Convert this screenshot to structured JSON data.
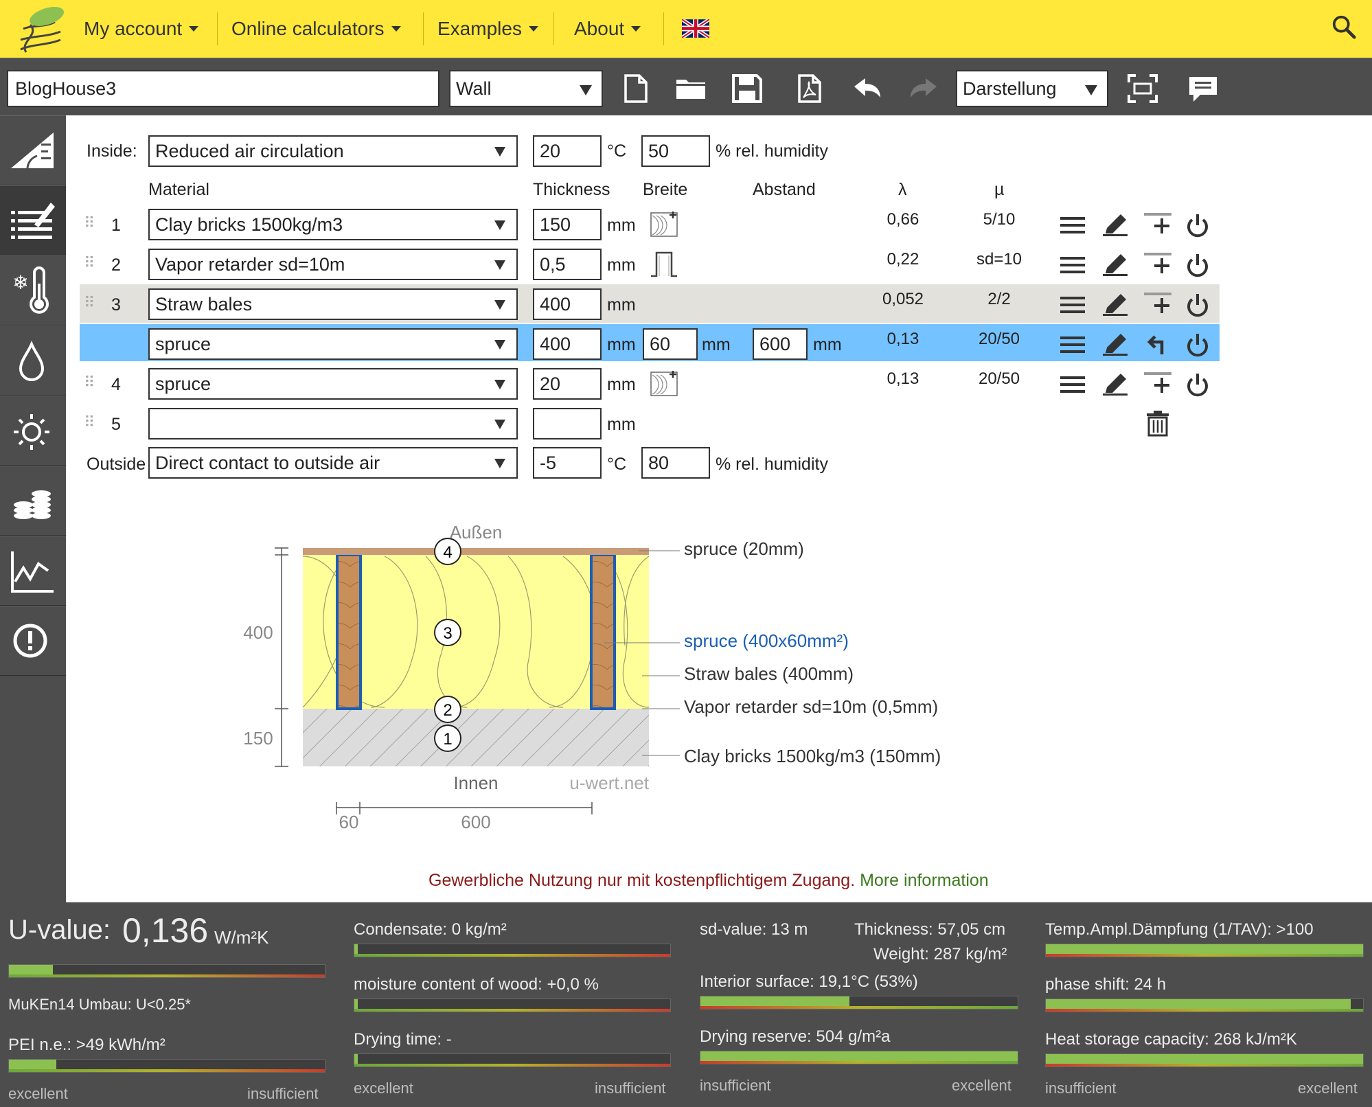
{
  "nav": {
    "items": [
      "My account",
      "Online calculators",
      "Examples",
      "About"
    ]
  },
  "toolbar": {
    "project_name": "BlogHouse3",
    "component_type": "Wall",
    "view_mode": "Darstellung"
  },
  "layers": {
    "inside_label": "Inside:",
    "inside_condition": "Reduced air circulation",
    "inside_temp": "20",
    "inside_humidity": "50",
    "outside_label": "Outside",
    "outside_condition": "Direct contact to outside air",
    "outside_temp": "-5",
    "outside_humidity": "80",
    "temp_unit": "°C",
    "humidity_unit": "% rel. humidity",
    "headers": {
      "material": "Material",
      "thickness": "Thickness",
      "breite": "Breite",
      "abstand": "Abstand",
      "lambda": "λ",
      "mu": "µ"
    },
    "mm": "mm",
    "rows": [
      {
        "num": "1",
        "material": "Clay bricks 1500kg/m3",
        "thickness": "150",
        "lambda": "0,66",
        "mu": "5/10"
      },
      {
        "num": "2",
        "material": "Vapor retarder sd=10m",
        "thickness": "0,5",
        "lambda": "0,22",
        "mu": "sd=10"
      },
      {
        "num": "3",
        "material": "Straw bales",
        "thickness": "400",
        "lambda": "0,052",
        "mu": "2/2"
      },
      {
        "num": "",
        "material": "spruce",
        "thickness": "400",
        "breite": "60",
        "abstand": "600",
        "lambda": "0,13",
        "mu": "20/50"
      },
      {
        "num": "4",
        "material": "spruce",
        "thickness": "20",
        "lambda": "0,13",
        "mu": "20/50"
      },
      {
        "num": "5",
        "material": "",
        "thickness": ""
      }
    ]
  },
  "diagram": {
    "top_label": "Außen",
    "bottom_label": "Innen",
    "watermark": "u-wert.net",
    "dim_400": "400",
    "dim_150": "150",
    "dim_60": "60",
    "dim_600": "600",
    "callouts": {
      "spruce20": "spruce (20mm)",
      "spruce400": "spruce (400x60mm²)",
      "straw": "Straw bales (400mm)",
      "vapor": "Vapor retarder sd=10m (0,5mm)",
      "clay": "Clay bricks 1500kg/m3 (150mm)"
    },
    "markers": [
      "4",
      "3",
      "2",
      "1"
    ]
  },
  "notice": {
    "text": "Gewerbliche Nutzung nur mit kostenpflichtigem Zugang.",
    "link": "More information"
  },
  "results": {
    "uvalue_label": "U-value:",
    "uvalue": "0,136",
    "uvalue_unit": "W/m²K",
    "uvalue_bar_fraction": 0.14,
    "muken": "MuKEn14 Umbau: U<0.25*",
    "pei": "PEI n.e.: >49 kWh/m²",
    "pei_bar_fraction": 0.15,
    "condensate": "Condensate: 0 kg/m²",
    "moisture_wood": "moisture content of wood: +0,0 %",
    "drying_time": "Drying time: -",
    "sd_value": "sd-value: 13 m",
    "thickness": "Thickness: 57,05 cm",
    "weight": "Weight: 287 kg/m²",
    "interior_surface": "Interior surface: 19,1°C (53%)",
    "interior_bar_fraction": 0.47,
    "drying_reserve": "Drying reserve: 504 g/m²a",
    "drying_reserve_fraction": 1.0,
    "temp_ampl": "Temp.Ampl.Dämpfung (1/TAV): >100",
    "phase_shift": "phase shift: 24 h",
    "phase_fraction": 0.96,
    "heat_storage": "Heat storage capacity: 268 kJ/m²K",
    "heat_fraction": 1.0,
    "excellent": "excellent",
    "insufficient": "insufficient"
  },
  "colors": {
    "topbar": "#ffe839",
    "dark": "#4d4d4d",
    "highlight": "#74c2ff",
    "straw": "#ffff99",
    "wood": "#c98f5b",
    "notice_red": "#8b1a1a",
    "notice_green": "#3d7a1e"
  }
}
